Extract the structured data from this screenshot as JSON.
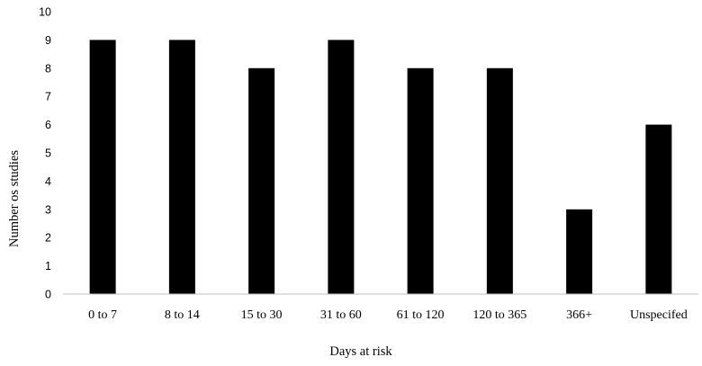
{
  "chart_data": {
    "type": "bar",
    "title": "",
    "xlabel": "Days at risk",
    "ylabel": "Number os studies",
    "categories": [
      "0 to 7",
      "8 to 14",
      "15 to 30",
      "31 to 60",
      "61 to 120",
      "120 to 365",
      "366+",
      "Unspecifed"
    ],
    "values": [
      9,
      9,
      8,
      9,
      8,
      8,
      3,
      6
    ],
    "ylim": [
      0,
      10
    ],
    "yticks": [
      "0",
      "1",
      "2",
      "3",
      "4",
      "5",
      "6",
      "7",
      "8",
      "9",
      "10"
    ],
    "grid": false,
    "legend": "none",
    "bar_color": "#000000",
    "axis_color": "#bfbfbf"
  }
}
